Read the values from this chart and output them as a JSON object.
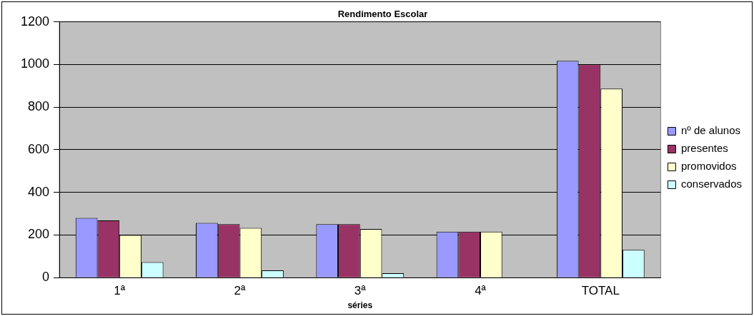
{
  "chart_data": {
    "type": "bar",
    "title": "Rendimento Escolar",
    "xlabel": "séries",
    "categories": [
      "1ª",
      "2ª",
      "3ª",
      "4ª",
      "TOTAL"
    ],
    "series": [
      {
        "name": "nº de alunos",
        "color": "#9999ff",
        "values": [
          280,
          257,
          251,
          216,
          1017
        ]
      },
      {
        "name": "presentes",
        "color": "#993366",
        "values": [
          268,
          251,
          251,
          216,
          1000
        ]
      },
      {
        "name": "promovidos",
        "color": "#ffffcc",
        "values": [
          200,
          233,
          228,
          216,
          887
        ]
      },
      {
        "name": "conservados",
        "color": "#ccffff",
        "values": [
          73,
          34,
          21,
          0,
          130
        ]
      }
    ],
    "ylim": [
      0,
      1200
    ],
    "yticks": [
      0,
      200,
      400,
      600,
      800,
      1000,
      1200
    ],
    "grid": "y",
    "legend": "right"
  }
}
